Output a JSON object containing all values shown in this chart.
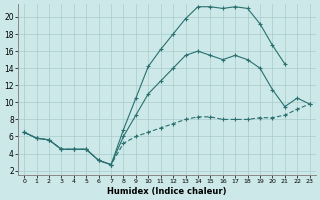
{
  "xlabel": "Humidex (Indice chaleur)",
  "bg_color": "#cce8e8",
  "grid_color": "#aacccc",
  "line_color": "#2a7070",
  "xlim": [
    -0.5,
    23.5
  ],
  "ylim": [
    1.5,
    21.5
  ],
  "yticks": [
    2,
    4,
    6,
    8,
    10,
    12,
    14,
    16,
    18,
    20
  ],
  "xticks": [
    0,
    1,
    2,
    3,
    4,
    5,
    6,
    7,
    8,
    9,
    10,
    11,
    12,
    13,
    14,
    15,
    16,
    17,
    18,
    19,
    20,
    21,
    22,
    23
  ],
  "curve_top_x": [
    0,
    1,
    2,
    3,
    4,
    5,
    6,
    7,
    8,
    9,
    10,
    11,
    12,
    13,
    14,
    15,
    16,
    17,
    18,
    19,
    20,
    21
  ],
  "curve_top_y": [
    6.5,
    5.8,
    5.6,
    4.5,
    4.5,
    4.5,
    3.2,
    2.7,
    6.8,
    10.5,
    14.2,
    16.2,
    18.0,
    19.8,
    21.2,
    21.2,
    21.0,
    21.2,
    21.0,
    19.2,
    16.7,
    14.5
  ],
  "curve_mid_x": [
    0,
    1,
    2,
    3,
    4,
    5,
    6,
    7,
    8,
    9,
    10,
    11,
    12,
    13,
    14,
    15,
    16,
    17,
    18,
    19,
    20,
    21,
    22,
    23
  ],
  "curve_mid_y": [
    6.5,
    5.8,
    5.6,
    4.5,
    4.5,
    4.5,
    3.2,
    2.7,
    6.0,
    8.5,
    11.0,
    12.5,
    14.0,
    15.5,
    16.0,
    15.5,
    15.0,
    15.5,
    15.0,
    14.0,
    11.5,
    9.5,
    10.5,
    9.8
  ],
  "curve_bot_x": [
    0,
    1,
    2,
    3,
    4,
    5,
    6,
    7,
    8,
    9,
    10,
    11,
    12,
    13,
    14,
    15,
    16,
    17,
    18,
    19,
    20,
    21,
    22,
    23
  ],
  "curve_bot_y": [
    6.5,
    5.8,
    5.6,
    4.5,
    4.5,
    4.5,
    3.2,
    2.7,
    5.2,
    6.0,
    6.5,
    7.0,
    7.5,
    8.0,
    8.3,
    8.3,
    8.0,
    8.0,
    8.0,
    8.2,
    8.2,
    8.5,
    9.2,
    9.8
  ]
}
